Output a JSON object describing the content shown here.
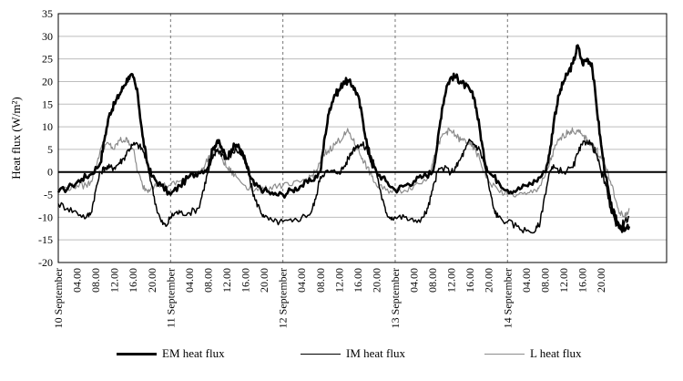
{
  "chart_data": {
    "type": "line",
    "ylabel": "Heat flux (W/m²)",
    "xlabel": "",
    "ylim": [
      -20,
      35
    ],
    "yticks": [
      -20,
      -15,
      -10,
      -5,
      0,
      5,
      10,
      15,
      20,
      25,
      30,
      35
    ],
    "grid": "horizontal",
    "legend_position": "bottom",
    "x_range_hours": [
      0,
      130
    ],
    "x_unit": "hours from 10 September 00.00",
    "day_labels": [
      {
        "hour": 0,
        "label": "10 September"
      },
      {
        "hour": 24,
        "label": "11 September"
      },
      {
        "hour": 48,
        "label": "12 September"
      },
      {
        "hour": 72,
        "label": "13 September"
      },
      {
        "hour": 96,
        "label": "14 September"
      }
    ],
    "hour_tick_labels": [
      "04.00",
      "08.00",
      "12.00",
      "16.00",
      "20.00"
    ],
    "series": [
      {
        "name": "EM heat flux",
        "color": "#000000",
        "width": 2.6,
        "points": [
          [
            0,
            -4.5
          ],
          [
            3,
            -3
          ],
          [
            5,
            -1.5
          ],
          [
            7,
            -0.5
          ],
          [
            9,
            2
          ],
          [
            10,
            8
          ],
          [
            11,
            13
          ],
          [
            12,
            15
          ],
          [
            13,
            17
          ],
          [
            14,
            19
          ],
          [
            15,
            21
          ],
          [
            16,
            21
          ],
          [
            17,
            17
          ],
          [
            18,
            8
          ],
          [
            19,
            2
          ],
          [
            20,
            -1
          ],
          [
            22,
            -3
          ],
          [
            24,
            -5
          ],
          [
            26,
            -3
          ],
          [
            28,
            -1
          ],
          [
            30,
            0
          ],
          [
            32,
            1
          ],
          [
            33,
            5
          ],
          [
            34,
            7
          ],
          [
            35,
            5
          ],
          [
            36,
            3
          ],
          [
            37,
            5
          ],
          [
            38,
            6
          ],
          [
            39,
            5
          ],
          [
            40,
            2
          ],
          [
            41,
            -1
          ],
          [
            42,
            -3
          ],
          [
            44,
            -4
          ],
          [
            46,
            -5
          ],
          [
            48,
            -5
          ],
          [
            50,
            -4
          ],
          [
            52,
            -3
          ],
          [
            54,
            -2
          ],
          [
            56,
            0
          ],
          [
            57,
            8
          ],
          [
            58,
            14
          ],
          [
            59,
            17
          ],
          [
            60,
            18
          ],
          [
            61,
            20
          ],
          [
            62,
            20
          ],
          [
            63,
            19
          ],
          [
            64,
            17
          ],
          [
            65,
            12
          ],
          [
            66,
            6
          ],
          [
            67,
            2
          ],
          [
            68,
            0
          ],
          [
            70,
            -2
          ],
          [
            72,
            -4
          ],
          [
            74,
            -3
          ],
          [
            76,
            -2
          ],
          [
            78,
            -1
          ],
          [
            80,
            0
          ],
          [
            81,
            6
          ],
          [
            82,
            14
          ],
          [
            83,
            19
          ],
          [
            84,
            21
          ],
          [
            85,
            21
          ],
          [
            86,
            20
          ],
          [
            87,
            19
          ],
          [
            88,
            18
          ],
          [
            89,
            16
          ],
          [
            90,
            10
          ],
          [
            91,
            3
          ],
          [
            92,
            0
          ],
          [
            94,
            -2
          ],
          [
            96,
            -4
          ],
          [
            98,
            -4
          ],
          [
            100,
            -3
          ],
          [
            102,
            -2
          ],
          [
            104,
            0
          ],
          [
            105,
            4
          ],
          [
            106,
            12
          ],
          [
            107,
            17
          ],
          [
            108,
            20
          ],
          [
            109,
            22
          ],
          [
            110,
            24
          ],
          [
            111,
            28
          ],
          [
            112,
            24
          ],
          [
            113,
            25
          ],
          [
            114,
            24
          ],
          [
            115,
            15
          ],
          [
            116,
            6
          ],
          [
            117,
            -1
          ],
          [
            118,
            -7
          ],
          [
            119,
            -10
          ],
          [
            120,
            -12
          ],
          [
            121,
            -13
          ],
          [
            122,
            -12
          ]
        ]
      },
      {
        "name": "IM heat flux",
        "color": "#000000",
        "width": 1.5,
        "points": [
          [
            0,
            -7
          ],
          [
            2,
            -8
          ],
          [
            4,
            -9
          ],
          [
            6,
            -10
          ],
          [
            7,
            -9
          ],
          [
            8,
            -4
          ],
          [
            9,
            0
          ],
          [
            10,
            1
          ],
          [
            11,
            1
          ],
          [
            12,
            1
          ],
          [
            13,
            2
          ],
          [
            14,
            3
          ],
          [
            15,
            5
          ],
          [
            16,
            6
          ],
          [
            17,
            6
          ],
          [
            18,
            5
          ],
          [
            19,
            2
          ],
          [
            20,
            -3
          ],
          [
            21,
            -8
          ],
          [
            22,
            -11
          ],
          [
            23,
            -12
          ],
          [
            24,
            -10
          ],
          [
            25,
            -9
          ],
          [
            26,
            -9
          ],
          [
            28,
            -9
          ],
          [
            30,
            -8
          ],
          [
            31,
            -4
          ],
          [
            32,
            0
          ],
          [
            33,
            3
          ],
          [
            34,
            5
          ],
          [
            35,
            4
          ],
          [
            36,
            3
          ],
          [
            37,
            4
          ],
          [
            38,
            5
          ],
          [
            39,
            4
          ],
          [
            40,
            3
          ],
          [
            41,
            -2
          ],
          [
            42,
            -6
          ],
          [
            43,
            -8
          ],
          [
            44,
            -10
          ],
          [
            46,
            -11
          ],
          [
            48,
            -11
          ],
          [
            50,
            -11
          ],
          [
            52,
            -10
          ],
          [
            54,
            -9
          ],
          [
            55,
            -6
          ],
          [
            56,
            -1
          ],
          [
            57,
            0
          ],
          [
            58,
            0
          ],
          [
            60,
            0
          ],
          [
            61,
            1
          ],
          [
            62,
            3
          ],
          [
            63,
            5
          ],
          [
            64,
            6
          ],
          [
            65,
            6
          ],
          [
            66,
            5
          ],
          [
            67,
            3
          ],
          [
            68,
            0
          ],
          [
            69,
            -5
          ],
          [
            70,
            -9
          ],
          [
            71,
            -10
          ],
          [
            72,
            -10
          ],
          [
            74,
            -10
          ],
          [
            76,
            -11
          ],
          [
            78,
            -10
          ],
          [
            79,
            -8
          ],
          [
            80,
            -4
          ],
          [
            81,
            0
          ],
          [
            82,
            1
          ],
          [
            84,
            0
          ],
          [
            85,
            1
          ],
          [
            86,
            3
          ],
          [
            87,
            5
          ],
          [
            88,
            7
          ],
          [
            89,
            6
          ],
          [
            90,
            5
          ],
          [
            91,
            2
          ],
          [
            92,
            -3
          ],
          [
            93,
            -8
          ],
          [
            94,
            -10
          ],
          [
            96,
            -11
          ],
          [
            98,
            -12
          ],
          [
            100,
            -13
          ],
          [
            102,
            -13
          ],
          [
            103,
            -11
          ],
          [
            104,
            -5
          ],
          [
            105,
            0
          ],
          [
            106,
            1
          ],
          [
            108,
            0
          ],
          [
            110,
            1
          ],
          [
            111,
            4
          ],
          [
            112,
            6
          ],
          [
            113,
            7
          ],
          [
            114,
            6
          ],
          [
            115,
            4
          ],
          [
            116,
            0
          ],
          [
            117,
            -3
          ],
          [
            118,
            -8
          ],
          [
            119,
            -11
          ],
          [
            120,
            -12
          ],
          [
            121,
            -11
          ],
          [
            122,
            -10
          ]
        ]
      },
      {
        "name": "L heat flux",
        "color": "#8c8c8c",
        "width": 1.2,
        "points": [
          [
            0,
            -4
          ],
          [
            2,
            -3.5
          ],
          [
            4,
            -3
          ],
          [
            6,
            -3
          ],
          [
            7,
            -2
          ],
          [
            8,
            1
          ],
          [
            9,
            5
          ],
          [
            10,
            6
          ],
          [
            11,
            6
          ],
          [
            12,
            5
          ],
          [
            13,
            7
          ],
          [
            14,
            7
          ],
          [
            15,
            7
          ],
          [
            16,
            5
          ],
          [
            17,
            0
          ],
          [
            18,
            -3
          ],
          [
            19,
            -4
          ],
          [
            20,
            -3
          ],
          [
            22,
            -3
          ],
          [
            24,
            -3
          ],
          [
            26,
            -2
          ],
          [
            28,
            -1
          ],
          [
            30,
            0
          ],
          [
            31,
            1
          ],
          [
            32,
            3
          ],
          [
            33,
            4
          ],
          [
            34,
            5
          ],
          [
            35,
            3
          ],
          [
            36,
            1
          ],
          [
            37,
            0
          ],
          [
            38,
            -1
          ],
          [
            40,
            -3
          ],
          [
            42,
            -4
          ],
          [
            44,
            -4
          ],
          [
            46,
            -3
          ],
          [
            48,
            -3
          ],
          [
            50,
            -3
          ],
          [
            52,
            -2
          ],
          [
            54,
            -1
          ],
          [
            55,
            0
          ],
          [
            56,
            2
          ],
          [
            57,
            4
          ],
          [
            58,
            5
          ],
          [
            59,
            6
          ],
          [
            60,
            7
          ],
          [
            61,
            8
          ],
          [
            62,
            9
          ],
          [
            63,
            7
          ],
          [
            64,
            5
          ],
          [
            65,
            3
          ],
          [
            66,
            1
          ],
          [
            67,
            -1
          ],
          [
            68,
            -3
          ],
          [
            70,
            -4
          ],
          [
            72,
            -4
          ],
          [
            74,
            -4
          ],
          [
            76,
            -3
          ],
          [
            78,
            -2
          ],
          [
            79,
            -1
          ],
          [
            80,
            2
          ],
          [
            81,
            5
          ],
          [
            82,
            8
          ],
          [
            83,
            9
          ],
          [
            84,
            9
          ],
          [
            85,
            8
          ],
          [
            86,
            7
          ],
          [
            87,
            7
          ],
          [
            88,
            6
          ],
          [
            89,
            5
          ],
          [
            90,
            3
          ],
          [
            91,
            0
          ],
          [
            92,
            -2
          ],
          [
            94,
            -4
          ],
          [
            96,
            -5
          ],
          [
            98,
            -5
          ],
          [
            100,
            -5
          ],
          [
            102,
            -4
          ],
          [
            103,
            -3
          ],
          [
            104,
            -1
          ],
          [
            105,
            2
          ],
          [
            106,
            5
          ],
          [
            107,
            7
          ],
          [
            108,
            8
          ],
          [
            109,
            9
          ],
          [
            110,
            9
          ],
          [
            111,
            9
          ],
          [
            112,
            8
          ],
          [
            113,
            7
          ],
          [
            114,
            6
          ],
          [
            115,
            5
          ],
          [
            116,
            3
          ],
          [
            117,
            1
          ],
          [
            118,
            -2
          ],
          [
            119,
            -6
          ],
          [
            120,
            -9
          ],
          [
            121,
            -10
          ],
          [
            122,
            -8
          ]
        ]
      }
    ]
  }
}
